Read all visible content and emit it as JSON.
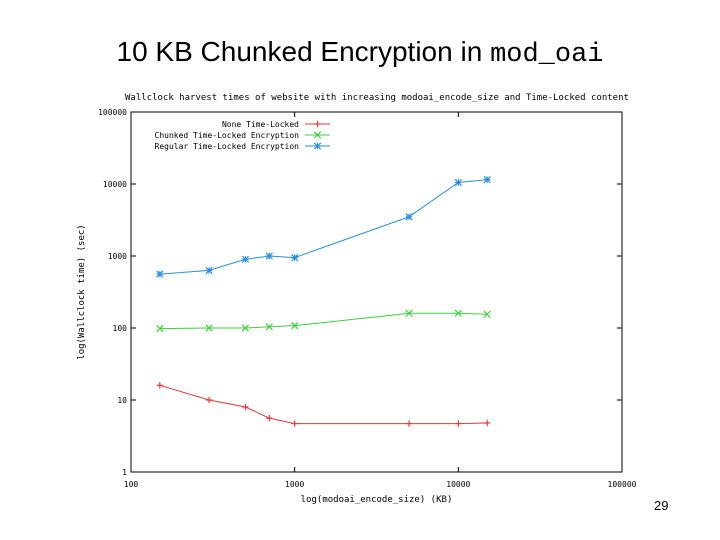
{
  "slide": {
    "title_prefix": "10 KB Chunked Encryption in ",
    "title_code": "mod_oai",
    "page_number": "29"
  },
  "chart_data": {
    "type": "line",
    "title": "Wallclock harvest times of website with increasing modoai_encode_size and Time-Locked content",
    "xlabel": "log(modoai_encode_size) (KB)",
    "ylabel": "log(Wallclock time) (sec)",
    "xscale": "log",
    "yscale": "log",
    "xlim": [
      100,
      100000
    ],
    "ylim": [
      1,
      100000
    ],
    "x_ticks": [
      100,
      1000,
      10000,
      100000
    ],
    "x_tick_labels": [
      "100",
      "1000",
      "10000",
      "100000"
    ],
    "y_ticks": [
      1,
      10,
      100,
      1000,
      10000,
      100000
    ],
    "y_tick_labels": [
      "1",
      "10",
      "100",
      "1000",
      "10000",
      "100000"
    ],
    "grid": false,
    "legend_position": "top-left",
    "series": [
      {
        "name": "None Time-Locked",
        "color": "#e8393a",
        "marker": "plus",
        "x": [
          150,
          300,
          500,
          700,
          1000,
          5000,
          10000,
          15000
        ],
        "y": [
          16,
          10,
          8,
          5.6,
          4.7,
          4.7,
          4.7,
          4.8
        ]
      },
      {
        "name": "Chunked Time-Locked Encryption",
        "color": "#3fcf3f",
        "marker": "x",
        "x": [
          150,
          300,
          500,
          700,
          1000,
          5000,
          10000,
          15000
        ],
        "y": [
          98,
          100,
          100,
          104,
          108,
          160,
          160,
          155
        ]
      },
      {
        "name": "Regular Time-Locked Encryption",
        "color": "#2a8fe0",
        "marker": "star",
        "x": [
          150,
          300,
          500,
          700,
          1000,
          5000,
          10000,
          15000
        ],
        "y": [
          560,
          630,
          900,
          1000,
          950,
          3500,
          10500,
          11500
        ]
      }
    ]
  }
}
